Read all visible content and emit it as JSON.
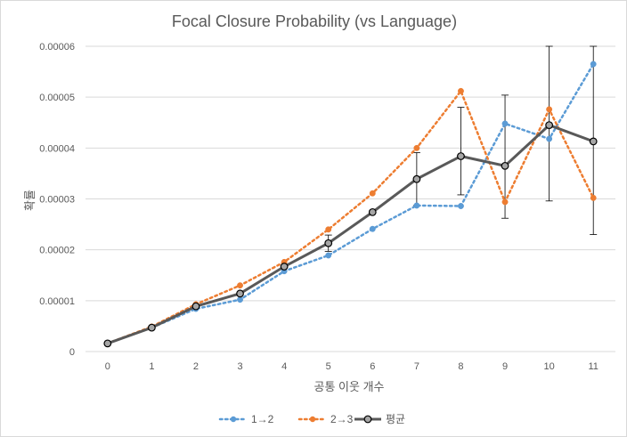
{
  "chart_data": {
    "type": "line",
    "title": "Focal Closure Probability (vs Language)",
    "xlabel": "공통 이웃 개수",
    "ylabel": "확률",
    "categories": [
      "0",
      "1",
      "2",
      "3",
      "4",
      "5",
      "6",
      "7",
      "8",
      "9",
      "10",
      "11"
    ],
    "y_ticks": [
      "0",
      "0.00001",
      "0.00002",
      "0.00003",
      "0.00004",
      "0.00005",
      "0.00006"
    ],
    "ylim": [
      0,
      6e-05
    ],
    "grid": "horizontal",
    "legend_position": "bottom",
    "series": [
      {
        "name": "1→2",
        "style": "dotted",
        "color": "#5B9BD5",
        "values": [
          1.6e-06,
          4.7e-06,
          8.4e-06,
          1.02e-05,
          1.58e-05,
          1.89e-05,
          2.41e-05,
          2.87e-05,
          2.86e-05,
          4.48e-05,
          4.18e-05,
          5.65e-05
        ]
      },
      {
        "name": "2→3",
        "style": "dotted",
        "color": "#ED7D31",
        "values": [
          1.6e-06,
          4.9e-06,
          9.3e-06,
          1.3e-05,
          1.76e-05,
          2.4e-05,
          3.11e-05,
          4e-05,
          5.12e-05,
          2.94e-05,
          4.76e-05,
          3.02e-05
        ]
      },
      {
        "name": "평균",
        "style": "solid",
        "color": "#595959",
        "values": [
          1.6e-06,
          4.7e-06,
          8.9e-06,
          1.14e-05,
          1.67e-05,
          2.13e-05,
          2.74e-05,
          3.39e-05,
          3.84e-05,
          3.65e-05,
          4.45e-05,
          4.13e-05
        ],
        "error_low": [
          1.6e-06,
          4.7e-06,
          8.9e-06,
          1.14e-05,
          1.67e-05,
          1.97e-05,
          2.74e-05,
          2.87e-05,
          3.08e-05,
          2.62e-05,
          2.96e-05,
          2.3e-05
        ],
        "error_high": [
          1.6e-06,
          4.7e-06,
          8.9e-06,
          1.14e-05,
          1.67e-05,
          2.29e-05,
          2.74e-05,
          3.91e-05,
          4.8e-05,
          5.04e-05,
          6e-05,
          6e-05
        ]
      }
    ]
  }
}
